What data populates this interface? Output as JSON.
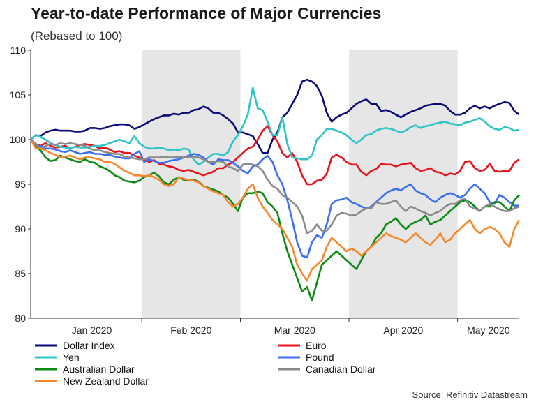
{
  "chart_data": {
    "type": "line",
    "title": "Year-to-date Performance of Major Currencies",
    "subtitle": "(Rebased to 100)",
    "source": "Source: Refinitiv Datastream",
    "xlabel": "",
    "ylabel": "",
    "ylim": [
      80,
      110
    ],
    "y_ticks": [
      80,
      85,
      90,
      95,
      100,
      105,
      110
    ],
    "x_month_labels": [
      "Jan 2020",
      "Feb 2020",
      "Mar 2020",
      "Apr 2020",
      "May 2020"
    ],
    "x": [
      "Jan 1",
      "Jan 2",
      "Jan 3",
      "Jan 6",
      "Jan 7",
      "Jan 8",
      "Jan 9",
      "Jan 10",
      "Jan 13",
      "Jan 14",
      "Jan 15",
      "Jan 16",
      "Jan 17",
      "Jan 20",
      "Jan 21",
      "Jan 22",
      "Jan 23",
      "Jan 24",
      "Jan 27",
      "Jan 28",
      "Jan 29",
      "Jan 30",
      "Jan 31",
      "Feb 3",
      "Feb 4",
      "Feb 5",
      "Feb 6",
      "Feb 7",
      "Feb 10",
      "Feb 11",
      "Feb 12",
      "Feb 13",
      "Feb 14",
      "Feb 17",
      "Feb 18",
      "Feb 19",
      "Feb 20",
      "Feb 21",
      "Feb 24",
      "Feb 25",
      "Feb 26",
      "Feb 27",
      "Feb 28",
      "Mar 2",
      "Mar 3",
      "Mar 4",
      "Mar 5",
      "Mar 6",
      "Mar 9",
      "Mar 10",
      "Mar 11",
      "Mar 12",
      "Mar 13",
      "Mar 16",
      "Mar 17",
      "Mar 18",
      "Mar 19",
      "Mar 20",
      "Mar 23",
      "Mar 24",
      "Mar 25",
      "Mar 26",
      "Mar 27",
      "Mar 30",
      "Mar 31",
      "Apr 1",
      "Apr 2",
      "Apr 3",
      "Apr 6",
      "Apr 7",
      "Apr 8",
      "Apr 9",
      "Apr 10",
      "Apr 13",
      "Apr 14",
      "Apr 15",
      "Apr 16",
      "Apr 17",
      "Apr 20",
      "Apr 21",
      "Apr 22",
      "Apr 23",
      "Apr 24",
      "Apr 27",
      "Apr 28",
      "Apr 29",
      "Apr 30",
      "May 1",
      "May 4",
      "May 5",
      "May 6",
      "May 7",
      "May 8",
      "May 11",
      "May 12",
      "May 13",
      "May 14",
      "May 15",
      "May 18",
      "May 19"
    ],
    "shaded_months": [
      "Feb 2020",
      "Apr 2020"
    ],
    "legend": [
      {
        "name": "Dollar Index",
        "color": "#0a0a7a"
      },
      {
        "name": "Euro",
        "color": "#e8141c"
      },
      {
        "name": "Yen",
        "color": "#2fc4c8"
      },
      {
        "name": "Pound",
        "color": "#3b6ff5"
      },
      {
        "name": "Australian Dollar",
        "color": "#0b8a14"
      },
      {
        "name": "Canadian Dollar",
        "color": "#8a8a8a"
      },
      {
        "name": "New Zealand Dollar",
        "color": "#f5872c"
      }
    ],
    "series": [
      {
        "name": "Dollar Index",
        "color": "#0a0a7a",
        "values": [
          100,
          100.5,
          100.4,
          100.8,
          101.0,
          101.1,
          101.0,
          101.0,
          101.0,
          100.9,
          100.9,
          101.0,
          101.3,
          101.3,
          101.2,
          101.3,
          101.5,
          101.6,
          101.7,
          101.7,
          101.6,
          101.2,
          101.4,
          101.7,
          102.0,
          102.3,
          102.5,
          102.7,
          102.7,
          102.9,
          102.8,
          103.0,
          103.0,
          103.3,
          103.4,
          103.7,
          103.5,
          103.0,
          103.0,
          102.7,
          102.3,
          101.8,
          100.8,
          100.8,
          100.6,
          100.4,
          99.5,
          98.5,
          98.5,
          100.0,
          100.8,
          102.5,
          103.0,
          104.0,
          105.0,
          106.5,
          106.7,
          106.5,
          106.0,
          104.9,
          103.0,
          102.0,
          102.5,
          102.8,
          103.0,
          103.5,
          104.0,
          104.3,
          104.5,
          104.0,
          104.0,
          103.2,
          103.3,
          103.1,
          102.8,
          102.5,
          102.8,
          103.1,
          103.3,
          103.5,
          103.8,
          103.9,
          104.0,
          104.0,
          103.8,
          103.2,
          102.8,
          102.8,
          103.0,
          103.5,
          103.8,
          103.5,
          103.7,
          103.5,
          103.8,
          104.0,
          104.2,
          104.1,
          103.2,
          102.8
        ]
      },
      {
        "name": "Euro",
        "color": "#e8141c",
        "values": [
          100,
          99.5,
          99.3,
          99.6,
          99.3,
          99.1,
          99.2,
          99.3,
          99.0,
          99.2,
          99.4,
          99.5,
          99.4,
          99.3,
          99.0,
          99.1,
          98.9,
          98.6,
          98.7,
          98.5,
          98.5,
          98.2,
          98.0,
          97.8,
          97.5,
          97.7,
          97.3,
          97.2,
          97.0,
          96.9,
          96.6,
          96.5,
          96.6,
          96.4,
          96.2,
          96.0,
          96.2,
          96.4,
          96.8,
          96.8,
          97.2,
          97.5,
          98.0,
          98.5,
          99.0,
          99.2,
          100.0,
          101.0,
          101.5,
          100.5,
          99.8,
          98.5,
          98.0,
          98.5,
          97.5,
          96.0,
          95.0,
          95.0,
          95.4,
          95.5,
          96.2,
          98.0,
          98.3,
          98.0,
          97.5,
          97.2,
          97.2,
          96.4,
          96.0,
          96.5,
          96.7,
          97.3,
          97.2,
          97.2,
          97.0,
          97.2,
          97.3,
          97.4,
          96.8,
          96.5,
          96.6,
          96.8,
          96.4,
          96.3,
          96.0,
          96.2,
          96.1,
          96.5,
          97.5,
          97.6,
          96.8,
          96.5,
          96.6,
          97.3,
          96.5,
          96.4,
          96.5,
          96.5,
          97.4,
          97.8
        ]
      },
      {
        "name": "Yen",
        "color": "#2fc4c8",
        "values": [
          100,
          100.5,
          100.3,
          100.0,
          99.6,
          99.4,
          99.2,
          99.1,
          99.0,
          99.2,
          99.1,
          99.1,
          99.2,
          99.3,
          99.3,
          99.4,
          99.6,
          99.8,
          100.0,
          99.8,
          99.6,
          100.4,
          99.6,
          99.2,
          99.0,
          99.0,
          99.1,
          99.0,
          98.8,
          98.9,
          98.8,
          99.0,
          98.9,
          97.8,
          97.2,
          97.5,
          98.0,
          98.4,
          98.4,
          98.2,
          98.6,
          99.8,
          100.5,
          101.5,
          102.8,
          105.8,
          103.5,
          103.3,
          102.0,
          100.5,
          100.5,
          102.5,
          99.5,
          98.0,
          97.9,
          97.8,
          97.8,
          98.2,
          100.0,
          100.5,
          101.2,
          101.2,
          101.0,
          100.8,
          100.5,
          100.0,
          99.6,
          100.0,
          100.5,
          100.6,
          101.0,
          101.2,
          101.3,
          101.2,
          101.0,
          100.8,
          101.0,
          101.4,
          101.6,
          101.3,
          101.5,
          101.6,
          101.8,
          101.9,
          102.0,
          101.8,
          101.7,
          101.6,
          101.9,
          102.0,
          102.2,
          102.4,
          102.0,
          101.5,
          101.2,
          101.1,
          101.4,
          101.3,
          101.0,
          101.1
        ]
      },
      {
        "name": "Pound",
        "color": "#3b6ff5",
        "values": [
          100,
          99.3,
          99.3,
          99.0,
          99.0,
          98.9,
          98.7,
          98.6,
          98.8,
          98.6,
          98.4,
          98.5,
          98.6,
          98.4,
          98.4,
          98.3,
          98.3,
          98.1,
          98.0,
          97.9,
          97.9,
          98.4,
          98.7,
          97.5,
          97.8,
          97.6,
          97.4,
          97.4,
          97.6,
          97.7,
          97.8,
          98.0,
          98.2,
          98.4,
          98.3,
          98.0,
          97.5,
          97.2,
          97.8,
          97.7,
          97.7,
          97.4,
          97.0,
          96.5,
          96.2,
          97.0,
          97.2,
          97.8,
          98.2,
          97.5,
          96.0,
          95.0,
          93.2,
          91.0,
          88.5,
          87.0,
          86.8,
          88.5,
          89.3,
          89.0,
          90.5,
          92.8,
          93.2,
          93.3,
          93.5,
          93.0,
          92.8,
          92.5,
          92.3,
          92.5,
          93.0,
          93.5,
          94.0,
          94.3,
          94.5,
          94.3,
          94.7,
          95.0,
          94.3,
          94.0,
          93.8,
          93.3,
          93.0,
          93.5,
          93.8,
          94.0,
          93.8,
          93.5,
          93.8,
          94.5,
          95.0,
          94.5,
          94.0,
          93.0,
          92.8,
          93.8,
          93.5,
          93.0,
          92.6,
          92.6
        ]
      },
      {
        "name": "Australian Dollar",
        "color": "#0b8a14",
        "values": [
          100,
          99.2,
          98.8,
          98.0,
          97.6,
          97.7,
          98.2,
          98.0,
          97.8,
          97.6,
          97.5,
          97.8,
          97.5,
          97.4,
          97.0,
          96.8,
          96.5,
          96.0,
          95.8,
          95.4,
          95.3,
          95.2,
          95.4,
          95.8,
          96.0,
          96.3,
          95.9,
          95.2,
          95.0,
          95.5,
          95.8,
          95.5,
          95.4,
          95.5,
          95.3,
          94.8,
          94.6,
          94.4,
          94.2,
          93.8,
          93.5,
          92.8,
          92.0,
          93.5,
          94.0,
          94.0,
          94.2,
          94.0,
          93.0,
          92.5,
          91.8,
          89.5,
          87.5,
          86.0,
          84.5,
          83.0,
          83.5,
          82.0,
          84.0,
          86.0,
          86.5,
          87.0,
          87.5,
          87.0,
          86.5,
          86.0,
          85.5,
          86.5,
          87.5,
          88.0,
          89.0,
          89.5,
          90.5,
          90.8,
          91.2,
          90.5,
          90.0,
          90.5,
          90.8,
          91.0,
          91.5,
          90.5,
          90.8,
          91.0,
          91.5,
          92.0,
          92.5,
          93.0,
          93.2,
          93.0,
          92.5,
          92.0,
          92.5,
          92.5,
          93.0,
          93.0,
          92.5,
          92.0,
          93.2,
          93.8
        ]
      },
      {
        "name": "Canadian Dollar",
        "color": "#8a8a8a",
        "values": [
          100,
          99.5,
          99.0,
          99.3,
          99.5,
          99.4,
          99.6,
          99.5,
          99.6,
          99.5,
          99.4,
          99.3,
          99.0,
          98.8,
          98.8,
          98.6,
          98.5,
          98.4,
          98.4,
          98.1,
          98.0,
          97.9,
          97.8,
          97.8,
          98.0,
          98.0,
          98.0,
          98.1,
          98.0,
          98.0,
          98.1,
          98.0,
          98.0,
          98.1,
          98.0,
          97.8,
          97.5,
          97.5,
          97.6,
          97.5,
          97.0,
          96.8,
          96.5,
          97.2,
          97.3,
          97.2,
          97.0,
          96.5,
          95.5,
          94.8,
          94.5,
          93.8,
          93.5,
          93.0,
          92.5,
          91.5,
          89.5,
          89.8,
          90.5,
          89.8,
          89.8,
          90.5,
          91.5,
          91.8,
          91.7,
          91.5,
          91.6,
          92.0,
          92.3,
          92.3,
          93.0,
          92.8,
          92.8,
          93.0,
          93.2,
          92.5,
          92.0,
          92.5,
          92.3,
          92.0,
          91.8,
          91.5,
          91.8,
          92.0,
          92.5,
          92.8,
          92.8,
          93.2,
          93.4,
          92.5,
          92.3,
          92.0,
          92.5,
          92.8,
          92.5,
          92.2,
          92.0,
          92.0,
          92.3,
          92.5
        ]
      },
      {
        "name": "New Zealand Dollar",
        "color": "#f5872c",
        "values": [
          100,
          99.0,
          99.0,
          98.8,
          98.5,
          98.3,
          98.0,
          98.1,
          98.2,
          98.0,
          97.8,
          98.0,
          98.0,
          97.9,
          97.8,
          97.5,
          97.5,
          97.3,
          96.9,
          96.5,
          96.3,
          96.0,
          96.0,
          95.9,
          96.0,
          95.8,
          95.5,
          95.0,
          94.8,
          95.0,
          95.8,
          95.6,
          95.5,
          95.4,
          95.2,
          94.8,
          94.5,
          94.2,
          94.0,
          93.8,
          93.0,
          92.5,
          92.8,
          93.5,
          94.5,
          95.0,
          93.5,
          92.5,
          91.8,
          91.0,
          90.5,
          90.0,
          89.0,
          88.0,
          86.0,
          85.0,
          84.2,
          85.5,
          86.0,
          86.5,
          88.0,
          89.0,
          88.5,
          88.0,
          87.5,
          87.8,
          87.5,
          87.0,
          87.5,
          88.0,
          88.5,
          89.0,
          89.5,
          89.2,
          89.0,
          88.8,
          88.5,
          89.0,
          89.5,
          89.0,
          88.5,
          88.2,
          88.8,
          89.5,
          88.5,
          88.8,
          89.5,
          90.0,
          90.5,
          91.0,
          90.0,
          89.5,
          90.0,
          90.2,
          90.0,
          89.5,
          88.5,
          88.0,
          90.0,
          91.0
        ]
      }
    ]
  }
}
